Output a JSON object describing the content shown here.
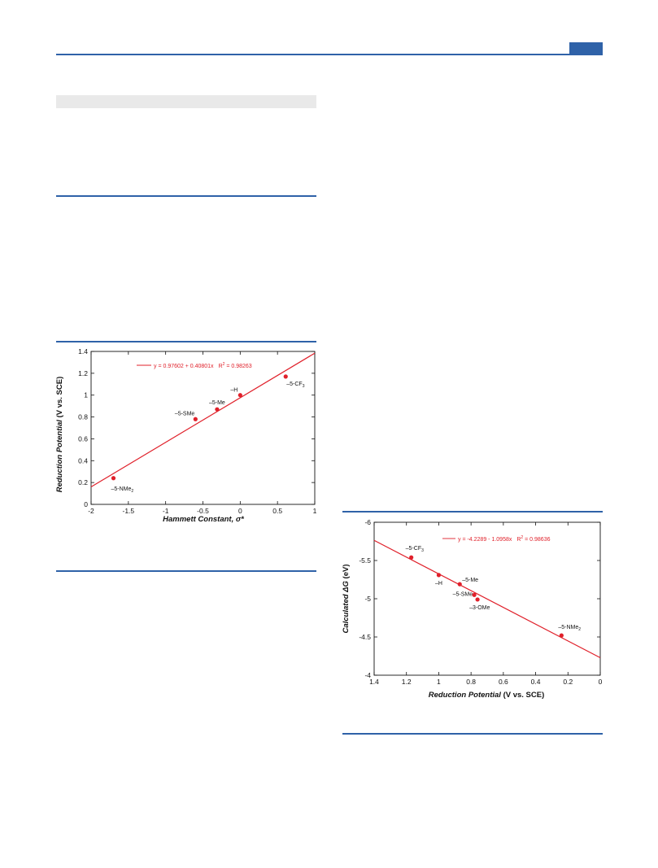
{
  "colors": {
    "accent": "#2f62a8",
    "fit_line": "#e0202a",
    "band": "#e9e9e9"
  },
  "chart_data": [
    {
      "type": "scatter",
      "xlabel_bold_italic": "Hammett Constant, ",
      "xlabel_symbol": "σ*",
      "ylabel_italic": "Reduction Potential",
      "ylabel_rest": " (V vs. SCE)",
      "xlim": [
        -2,
        1
      ],
      "ylim": [
        0,
        1.4
      ],
      "x_ticks": [
        "-2",
        "-1.5",
        "-1",
        "-0.5",
        "0",
        "0.5",
        "1"
      ],
      "x_tick_values": [
        -2,
        -1.5,
        -1,
        -0.5,
        0,
        0.5,
        1
      ],
      "y_ticks": [
        "0",
        "0.2",
        "0.4",
        "0.6",
        "0.8",
        "1",
        "1.2",
        "1.4"
      ],
      "y_tick_values": [
        0,
        0.2,
        0.4,
        0.6,
        0.8,
        1.0,
        1.2,
        1.4
      ],
      "points": [
        {
          "label": "–5-NMe",
          "sub": "2",
          "x": -1.7,
          "y": 0.24
        },
        {
          "label": "–5-SMe",
          "sub": "",
          "x": -0.6,
          "y": 0.78
        },
        {
          "label": "–5-Me",
          "sub": "",
          "x": -0.31,
          "y": 0.87
        },
        {
          "label": "–H",
          "sub": "",
          "x": 0.0,
          "y": 1.0
        },
        {
          "label": "–5-CF",
          "sub": "3",
          "x": 0.61,
          "y": 1.17
        }
      ],
      "fit": {
        "intercept": 0.97602,
        "slope": 0.40801,
        "equation": "y = 0.97602 + 0.40801x",
        "r2_prefix": "R",
        "r2_sup": "2",
        "r2_value": " = 0.98263"
      },
      "grid": false,
      "legend": "top-center"
    },
    {
      "type": "scatter",
      "xlabel_bold_italic": "Reduction Potential",
      "xlabel_rest": " (V vs. SCE)",
      "ylabel_italic": "Calculated ΔG",
      "ylabel_rest": " (eV)",
      "xlim": [
        1.4,
        0
      ],
      "ylim": [
        -4,
        -6
      ],
      "x_ticks": [
        "1.4",
        "1.2",
        "1",
        "0.8",
        "0.6",
        "0.4",
        "0.2",
        "0"
      ],
      "x_tick_values": [
        1.4,
        1.2,
        1.0,
        0.8,
        0.6,
        0.4,
        0.2,
        0
      ],
      "y_ticks": [
        "-4",
        "-4.5",
        "-5",
        "-5.5",
        "-6"
      ],
      "y_tick_values": [
        -4,
        -4.5,
        -5,
        -5.5,
        -6
      ],
      "points": [
        {
          "label": "–5-CF",
          "sub": "3",
          "x": 1.17,
          "y": -5.54
        },
        {
          "label": "–H",
          "sub": "",
          "x": 1.0,
          "y": -5.31
        },
        {
          "label": "–5-Me",
          "sub": "",
          "x": 0.87,
          "y": -5.19
        },
        {
          "label": "–5-SMe",
          "sub": "",
          "x": 0.78,
          "y": -5.05
        },
        {
          "label": "–3-OMe",
          "sub": "",
          "x": 0.76,
          "y": -4.99
        },
        {
          "label": "–5-NMe",
          "sub": "2",
          "x": 0.24,
          "y": -4.52
        }
      ],
      "fit": {
        "intercept": -4.2289,
        "slope": -1.0958,
        "equation": "y = -4.2289 - 1.0958x",
        "r2_prefix": "R",
        "r2_sup": "2",
        "r2_value": " = 0.98636"
      },
      "grid": false,
      "legend": "top-center"
    }
  ]
}
